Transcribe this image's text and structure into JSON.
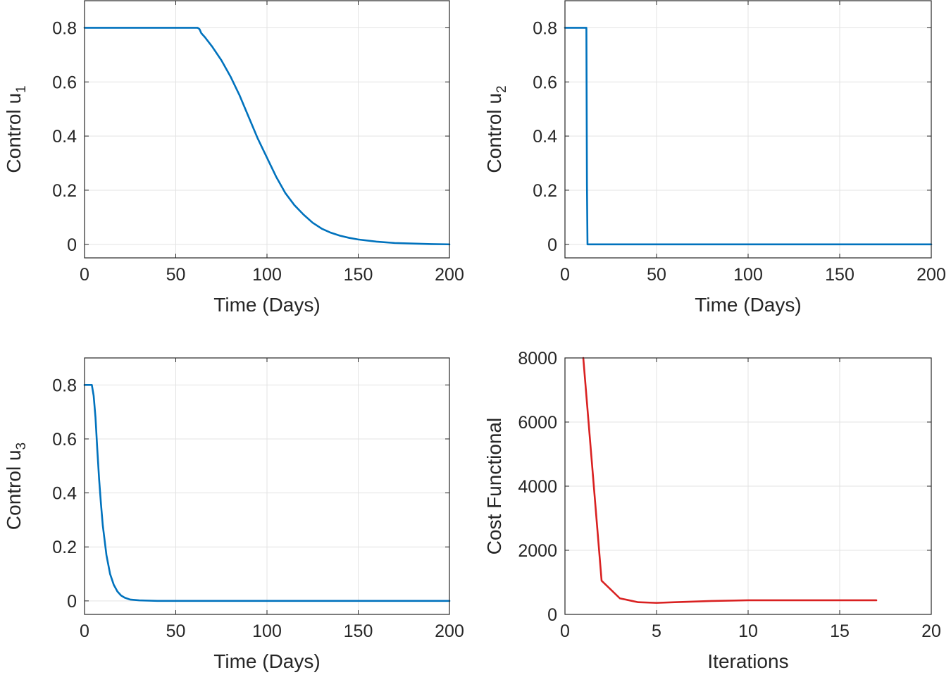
{
  "chart_data": [
    {
      "type": "line",
      "xlabel": "Time (Days)",
      "ylabel_main": "Control u",
      "ylabel_sub": "1",
      "xlim": [
        0,
        200
      ],
      "ylim": [
        -0.05,
        0.9
      ],
      "xticks": [
        0,
        50,
        100,
        150,
        200
      ],
      "yticks": [
        0,
        0.2,
        0.4,
        0.6,
        0.8
      ],
      "xtick_labels": [
        "0",
        "50",
        "100",
        "150",
        "200"
      ],
      "ytick_labels": [
        "0",
        "0.2",
        "0.4",
        "0.6",
        "0.8"
      ],
      "grid": true,
      "color": "#0072BD",
      "series": [
        {
          "x": [
            0,
            62,
            63,
            64,
            66,
            70,
            75,
            80,
            85,
            90,
            95,
            100,
            105,
            110,
            115,
            120,
            125,
            130,
            135,
            140,
            145,
            150,
            160,
            170,
            180,
            190,
            200
          ],
          "y": [
            0.8,
            0.8,
            0.795,
            0.78,
            0.765,
            0.73,
            0.68,
            0.62,
            0.55,
            0.47,
            0.39,
            0.32,
            0.25,
            0.19,
            0.145,
            0.11,
            0.08,
            0.058,
            0.043,
            0.032,
            0.024,
            0.018,
            0.01,
            0.005,
            0.003,
            0.001,
            0.0
          ]
        }
      ]
    },
    {
      "type": "line",
      "xlabel": "Time (Days)",
      "ylabel_main": "Control u",
      "ylabel_sub": "2",
      "xlim": [
        0,
        200
      ],
      "ylim": [
        -0.05,
        0.9
      ],
      "xticks": [
        0,
        50,
        100,
        150,
        200
      ],
      "yticks": [
        0,
        0.2,
        0.4,
        0.6,
        0.8
      ],
      "xtick_labels": [
        "0",
        "50",
        "100",
        "150",
        "200"
      ],
      "ytick_labels": [
        "0",
        "0.2",
        "0.4",
        "0.6",
        "0.8"
      ],
      "grid": true,
      "color": "#0072BD",
      "series": [
        {
          "x": [
            0,
            11.7,
            12.0,
            12.3,
            200
          ],
          "y": [
            0.8,
            0.8,
            0.22,
            0.0,
            0.0
          ]
        }
      ]
    },
    {
      "type": "line",
      "xlabel": "Time (Days)",
      "ylabel_main": "Control u",
      "ylabel_sub": "3",
      "xlim": [
        0,
        200
      ],
      "ylim": [
        -0.05,
        0.9
      ],
      "xticks": [
        0,
        50,
        100,
        150,
        200
      ],
      "yticks": [
        0,
        0.2,
        0.4,
        0.6,
        0.8
      ],
      "xtick_labels": [
        "0",
        "50",
        "100",
        "150",
        "200"
      ],
      "ytick_labels": [
        "0",
        "0.2",
        "0.4",
        "0.6",
        "0.8"
      ],
      "grid": true,
      "color": "#0072BD",
      "series": [
        {
          "x": [
            0,
            4,
            5,
            6,
            7,
            8,
            9,
            10,
            12,
            14,
            16,
            18,
            20,
            22,
            25,
            30,
            40,
            50,
            100,
            150,
            200
          ],
          "y": [
            0.8,
            0.8,
            0.76,
            0.68,
            0.56,
            0.45,
            0.36,
            0.28,
            0.17,
            0.1,
            0.06,
            0.035,
            0.02,
            0.012,
            0.005,
            0.002,
            0.0,
            0.0,
            0.0,
            0.0,
            0.0
          ]
        }
      ]
    },
    {
      "type": "line",
      "xlabel": "Iterations",
      "ylabel_main": "Cost Functional",
      "ylabel_sub": "",
      "xlim": [
        0,
        20
      ],
      "ylim": [
        0,
        8000
      ],
      "xticks": [
        0,
        5,
        10,
        15,
        20
      ],
      "yticks": [
        0,
        2000,
        4000,
        6000,
        8000
      ],
      "xtick_labels": [
        "0",
        "5",
        "10",
        "15",
        "20"
      ],
      "ytick_labels": [
        "0",
        "2000",
        "4000",
        "6000",
        "8000"
      ],
      "grid": true,
      "color": "#D92121",
      "series": [
        {
          "x": [
            1,
            2,
            3,
            4,
            5,
            6,
            7,
            8,
            9,
            10,
            11,
            12,
            13,
            14,
            15,
            16,
            17
          ],
          "y": [
            8000,
            1050,
            500,
            380,
            360,
            380,
            400,
            420,
            430,
            440,
            440,
            440,
            440,
            440,
            440,
            440,
            440
          ]
        }
      ]
    }
  ]
}
